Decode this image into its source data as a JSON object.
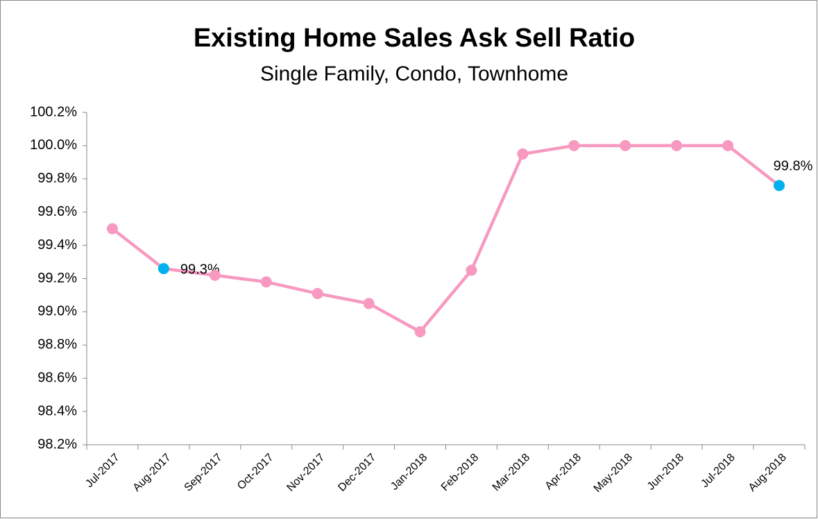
{
  "chart_data": {
    "type": "line",
    "title": "Existing Home Sales Ask Sell Ratio",
    "subtitle": "Single Family, Condo, Townhome",
    "categories": [
      "Jul-2017",
      "Aug-2017",
      "Sep-2017",
      "Oct-2017",
      "Nov-2017",
      "Dec-2017",
      "Jan-2018",
      "Feb-2018",
      "Mar-2018",
      "Apr-2018",
      "May-2018",
      "Jun-2018",
      "Jul-2018",
      "Aug-2018"
    ],
    "values": [
      99.5,
      99.26,
      99.22,
      99.18,
      99.11,
      99.05,
      98.88,
      99.25,
      99.95,
      100.0,
      100.0,
      100.0,
      100.0,
      99.76
    ],
    "value_labels": [
      null,
      "99.3%",
      null,
      null,
      null,
      null,
      null,
      null,
      null,
      null,
      null,
      null,
      null,
      "99.8%"
    ],
    "color": "#f799c0",
    "point_colors": [
      "#f799c0",
      "#00b0f0",
      "#f799c0",
      "#f799c0",
      "#f799c0",
      "#f799c0",
      "#f799c0",
      "#f799c0",
      "#f799c0",
      "#f799c0",
      "#f799c0",
      "#f799c0",
      "#f799c0",
      "#00b0f0"
    ],
    "ylim": [
      98.2,
      100.2
    ],
    "yticks": [
      {
        "value": 98.2,
        "label": "98.2%"
      },
      {
        "value": 98.4,
        "label": "98.4%"
      },
      {
        "value": 98.6,
        "label": "98.6%"
      },
      {
        "value": 98.8,
        "label": "98.8%"
      },
      {
        "value": 99.0,
        "label": "99.0%"
      },
      {
        "value": 99.2,
        "label": "99.2%"
      },
      {
        "value": 99.4,
        "label": "99.4%"
      },
      {
        "value": 99.6,
        "label": "99.6%"
      },
      {
        "value": 99.8,
        "label": "99.8%"
      },
      {
        "value": 100.0,
        "label": "100.0%"
      },
      {
        "value": 100.2,
        "label": "100.2%"
      }
    ],
    "grid": false
  }
}
